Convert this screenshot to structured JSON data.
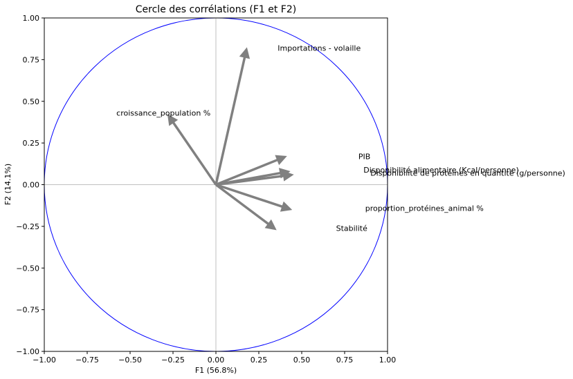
{
  "chart_data": {
    "type": "scatter",
    "title": "Cercle des corrélations (F1 et F2)",
    "xlabel": "F1 (56.8%)",
    "ylabel": "F2 (14.1%)",
    "xlim": [
      -1.0,
      1.0
    ],
    "ylim": [
      -1.0,
      1.0
    ],
    "x_ticks": [
      "−1.00",
      "−0.75",
      "−0.50",
      "−0.25",
      "0.00",
      "0.25",
      "0.50",
      "0.75",
      "1.00"
    ],
    "y_ticks": [
      "1.00",
      "0.75",
      "0.50",
      "0.25",
      "0.00",
      "−0.25",
      "−0.50",
      "−0.75",
      "−1.00"
    ],
    "grid": false,
    "unit_circle": true,
    "colors": {
      "arrows": "#808080",
      "circle": "#0000ff",
      "axes": "#bfbfbf",
      "frame": "#000000"
    },
    "variables": [
      {
        "name": "Importations - volaille",
        "x": 0.18,
        "y": 0.82,
        "label_x": 0.36,
        "label_y": 0.82
      },
      {
        "name": "croissance_population %",
        "x": -0.28,
        "y": 0.42,
        "label_x": -0.58,
        "label_y": 0.43
      },
      {
        "name": "PIB",
        "x": 0.41,
        "y": 0.17,
        "label_x": 0.83,
        "label_y": 0.17
      },
      {
        "name": "Disponibilité alimentaire (Kcal/personne)",
        "x": 0.43,
        "y": 0.08,
        "label_x": 0.86,
        "label_y": 0.09
      },
      {
        "name": "Disponibilité de protéines en quantité (g/personne)",
        "x": 0.45,
        "y": 0.06,
        "label_x": 0.9,
        "label_y": 0.07
      },
      {
        "name": "proportion_protéines_animal %",
        "x": 0.44,
        "y": -0.15,
        "label_x": 0.87,
        "label_y": -0.14
      },
      {
        "name": "Stabilité",
        "x": 0.35,
        "y": -0.27,
        "label_x": 0.7,
        "label_y": -0.26
      }
    ]
  }
}
